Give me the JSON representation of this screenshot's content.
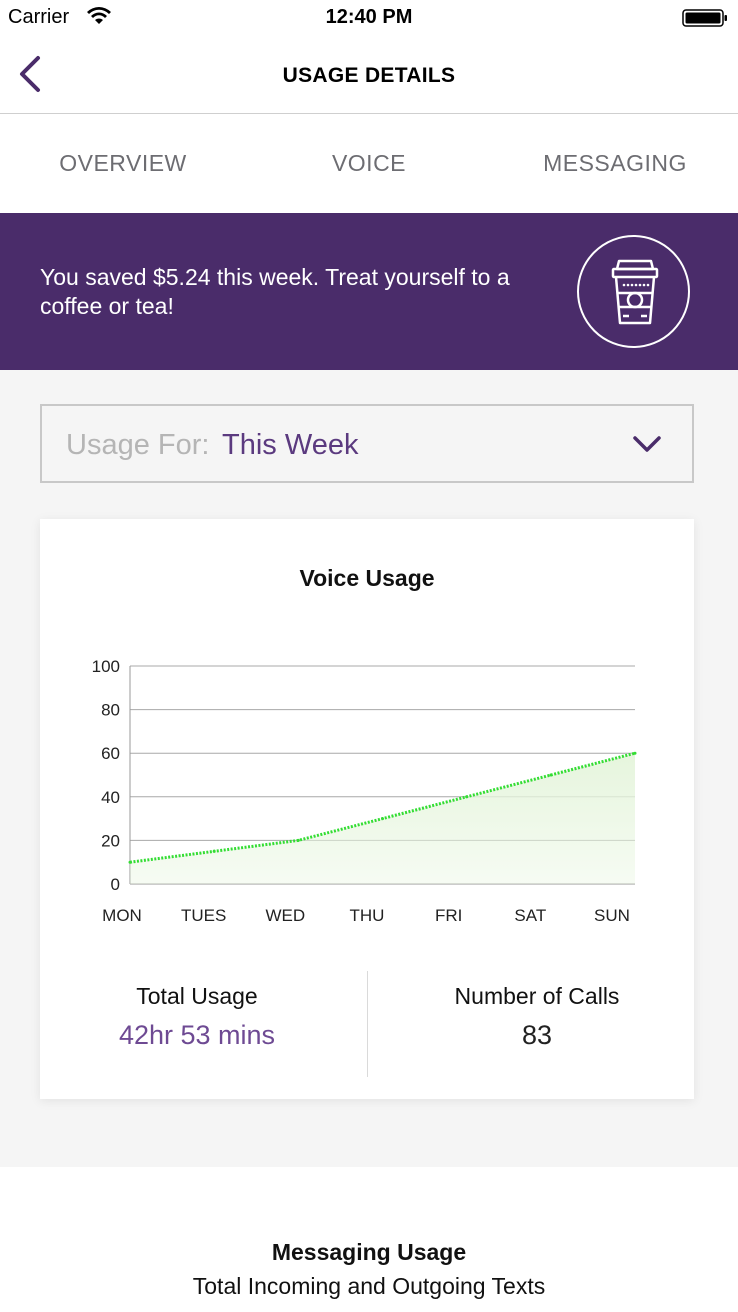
{
  "status_bar": {
    "carrier": "Carrier",
    "time": "12:40 PM"
  },
  "nav": {
    "title": "USAGE DETAILS",
    "back_icon": "chevron-left-icon"
  },
  "tabs": [
    {
      "label": "OVERVIEW"
    },
    {
      "label": "VOICE"
    },
    {
      "label": "MESSAGING"
    }
  ],
  "promo": {
    "text": "You saved $5.24 this week. Treat yourself to a coffee or tea!",
    "icon": "coffee-cup-icon"
  },
  "usage_select": {
    "label": "Usage For:",
    "value": "This Week"
  },
  "voice_card": {
    "title": "Voice Usage",
    "total_usage_label": "Total Usage",
    "total_usage_value": "42hr 53 mins",
    "calls_label": "Number of Calls",
    "calls_value": "83"
  },
  "chart_data": {
    "type": "area",
    "categories": [
      "MON",
      "TUES",
      "WED",
      "THU",
      "FRI",
      "SAT",
      "SUN"
    ],
    "values": [
      10,
      15,
      20,
      30,
      40,
      50,
      60
    ],
    "ylim": [
      0,
      100
    ],
    "yticks": [
      0,
      20,
      40,
      60,
      80,
      100
    ],
    "grid": true,
    "line_color": "#33dd33",
    "fill_color": "#e6f5dd"
  },
  "messaging": {
    "title": "Messaging Usage",
    "subtitle": "Total Incoming and Outgoing Texts"
  },
  "colors": {
    "brand_purple": "#4a2c6a",
    "accent_purple": "#6e4a93"
  }
}
